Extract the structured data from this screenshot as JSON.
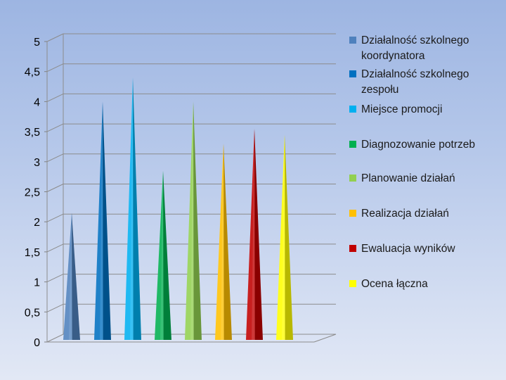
{
  "chart_data": {
    "type": "bar",
    "bar_shape": "cone",
    "ylim": [
      0,
      5
    ],
    "yticks": [
      "0",
      "0,5",
      "1",
      "1,5",
      "2",
      "2,5",
      "3",
      "3,5",
      "4",
      "4,5",
      "5"
    ],
    "grid": true,
    "legend_position": "right",
    "series": [
      {
        "name": "Działalność szkolnego koordynatora",
        "value": 2.15,
        "color": "#4f81bd"
      },
      {
        "name": "Działalność szkolnego zespołu",
        "value": 4.0,
        "color": "#0070c0"
      },
      {
        "name": "Miejsce promocji",
        "value": 4.4,
        "color": "#00b0f0"
      },
      {
        "name": "Diagnozowanie potrzeb",
        "value": 2.85,
        "color": "#00b050"
      },
      {
        "name": "Planowanie działań",
        "value": 4.0,
        "color": "#92d050"
      },
      {
        "name": "Realizacja działań",
        "value": 3.3,
        "color": "#ffc000"
      },
      {
        "name": "Ewaluacja wyników",
        "value": 3.55,
        "color": "#c00000"
      },
      {
        "name": "Ocena łączna",
        "value": 3.45,
        "color": "#ffff00"
      }
    ]
  }
}
